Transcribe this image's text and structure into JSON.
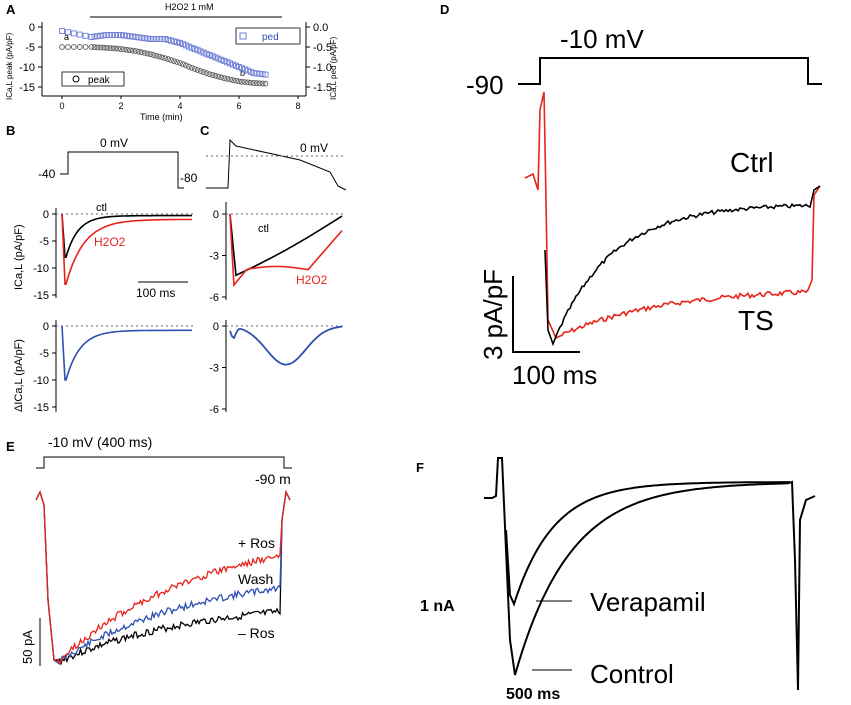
{
  "figure": {
    "colors": {
      "black": "#000000",
      "red": "#e8231a",
      "blue": "#2e4fb0",
      "open_blue": "#6e7fd6",
      "open_black": "#555555",
      "grey": "#888888"
    }
  },
  "chart_data": [
    {
      "panel": "A",
      "type": "scatter",
      "title": "H2O2 1 mM",
      "xlabel": "Time (min)",
      "ylabel_left": "ICa,L peak (pA/pF)",
      "ylabel_right": "ICa,L ped (pA/pF)",
      "x_ticks": [
        "0",
        "2",
        "4",
        "6",
        "8"
      ],
      "y_ticks_left": [
        "0",
        "-5",
        "-10",
        "-15"
      ],
      "y_ticks_right": [
        "0.0",
        "-0.5",
        "-1.0",
        "-1.5"
      ],
      "xlim": [
        0,
        8
      ],
      "ylim_left": [
        -15,
        0
      ],
      "ylim_right": [
        -1.5,
        0
      ],
      "annotations": [
        "a",
        "b"
      ],
      "series": [
        {
          "name": "peak",
          "axis": "left",
          "x": [
            0,
            1,
            1.5,
            2,
            2.5,
            3,
            3.5,
            4,
            4.5,
            5,
            5.5,
            6,
            6.5,
            7
          ],
          "y": [
            -5,
            -5,
            -5.2,
            -5.5,
            -6,
            -6.8,
            -7.8,
            -9,
            -10.5,
            -11.8,
            -12.8,
            -13.6,
            -14,
            -14.2
          ]
        },
        {
          "name": "ped",
          "axis": "right",
          "x": [
            0,
            1,
            1.5,
            2,
            2.5,
            3,
            3.5,
            4,
            4.5,
            5,
            5.5,
            6,
            6.5,
            7
          ],
          "y": [
            -0.1,
            -0.25,
            -0.2,
            -0.2,
            -0.25,
            -0.3,
            -0.3,
            -0.4,
            -0.55,
            -0.7,
            -0.85,
            -1.0,
            -1.15,
            -1.2
          ]
        }
      ]
    },
    {
      "panel": "B",
      "type": "line",
      "protocol_labels": [
        "-40",
        "0 mV",
        "-80"
      ],
      "ylabel_top": "ICa,L (pA/pF)",
      "ylabel_bottom": "ΔICa,L (pA/pF)",
      "y_ticks": [
        "0",
        "-5",
        "-10",
        "-15"
      ],
      "scale_bar": "100 ms",
      "series": [
        {
          "name": "ctl",
          "color": "#000000",
          "peak": -8,
          "end": -0.3
        },
        {
          "name": "H2O2",
          "color": "#e8231a",
          "peak": -13,
          "end": -1.0
        },
        {
          "name": "difference",
          "color": "#2e4fb0",
          "peak": -10,
          "end": -0.8
        }
      ]
    },
    {
      "panel": "C",
      "type": "line",
      "protocol_labels": [
        "0 mV"
      ],
      "y_ticks_top": [
        "0",
        "-3",
        "-6"
      ],
      "y_ticks_bottom": [
        "0",
        "-3",
        "-6"
      ],
      "series": [
        {
          "name": "ctl",
          "color": "#000000",
          "peak": -4.5,
          "end": -0.1
        },
        {
          "name": "H2O2",
          "color": "#e8231a",
          "peak": -5.5,
          "end": -1.2
        },
        {
          "name": "difference",
          "color": "#2e4fb0",
          "min": -2.8
        }
      ]
    },
    {
      "panel": "D",
      "type": "line",
      "protocol_labels": [
        "-90",
        "-10 mV"
      ],
      "scale_bar_y": "3 pA/pF",
      "scale_bar_x": "100 ms",
      "series": [
        {
          "name": "Ctrl",
          "color": "#000000"
        },
        {
          "name": "TS",
          "color": "#e8231a"
        }
      ]
    },
    {
      "panel": "E",
      "type": "line",
      "protocol_labels": [
        "-10 mV (400 ms)",
        "-90 m"
      ],
      "scale_bar_y": "50 pA",
      "series": [
        {
          "name": "+ Ros",
          "color": "#e8231a"
        },
        {
          "name": "Wash",
          "color": "#2e4fb0"
        },
        {
          "name": "– Ros",
          "color": "#000000"
        }
      ]
    },
    {
      "panel": "F",
      "type": "line",
      "scale_bar_y": "1 nA",
      "scale_bar_x": "500 ms",
      "series": [
        {
          "name": "Verapamil",
          "color": "#000000"
        },
        {
          "name": "Control",
          "color": "#000000"
        }
      ]
    }
  ]
}
